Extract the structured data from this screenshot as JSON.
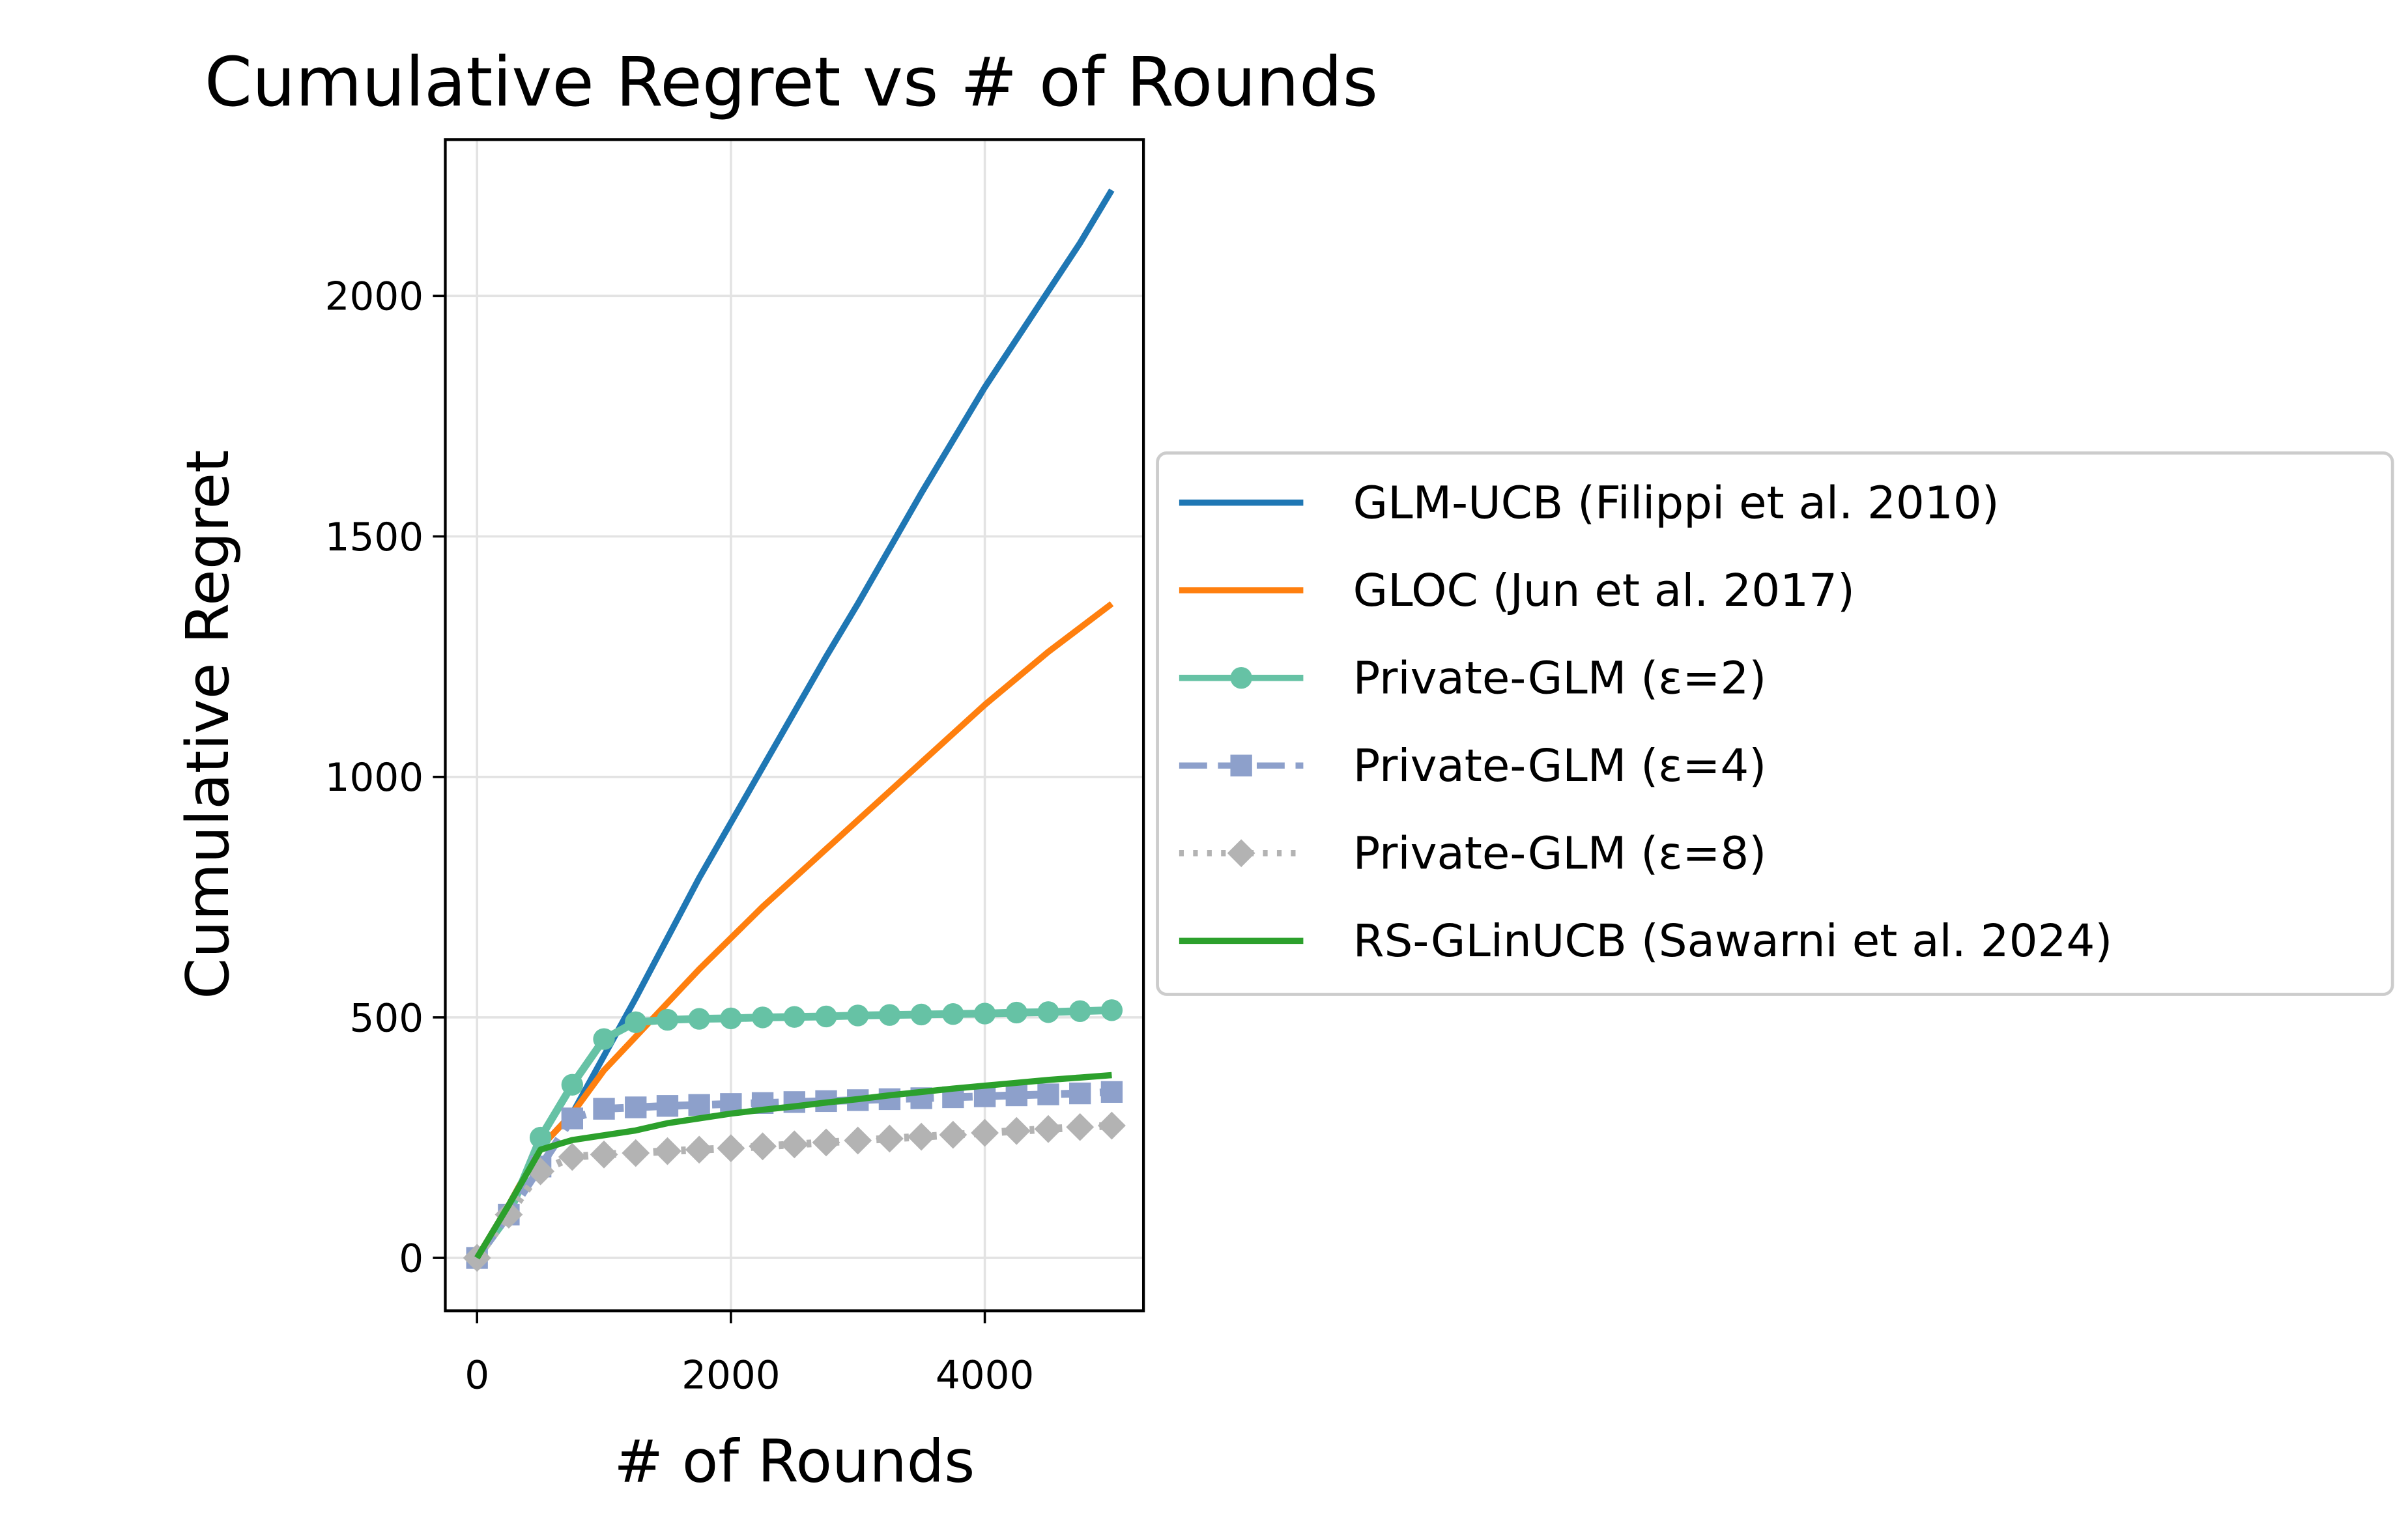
{
  "chart_data": {
    "type": "line",
    "title": "Cumulative Regret vs # of Rounds",
    "x_label": "# of Rounds",
    "y_label": "Cumulative Regret",
    "x": [
      0,
      250,
      500,
      750,
      1000,
      1250,
      1500,
      1750,
      2000,
      2250,
      2500,
      2750,
      3000,
      3250,
      3500,
      3750,
      4000,
      4250,
      4500,
      4750,
      5000
    ],
    "series": [
      {
        "name": "GLM-UCB (Filippi et al. 2010)",
        "color": "#1f77b4",
        "style": "solid",
        "marker": "none",
        "values": [
          0,
          110,
          230,
          300,
          420,
          540,
          665,
          790,
          905,
          1020,
          1135,
          1250,
          1360,
          1475,
          1590,
          1700,
          1810,
          1910,
          2010,
          2110,
          2220
        ]
      },
      {
        "name": "GLOC (Jun et al. 2017)",
        "color": "#ff7f0e",
        "style": "solid",
        "marker": "none",
        "values": [
          0,
          110,
          230,
          300,
          390,
          460,
          530,
          600,
          665,
          730,
          790,
          850,
          910,
          970,
          1030,
          1090,
          1150,
          1205,
          1260,
          1310,
          1360
        ]
      },
      {
        "name": "Private-GLM (ε=2)",
        "color": "#66c2a5",
        "style": "solid",
        "marker": "circle",
        "values": [
          0,
          90,
          250,
          360,
          455,
          490,
          495,
          497,
          498,
          500,
          501,
          502,
          504,
          505,
          506,
          507,
          508,
          510,
          511,
          513,
          515
        ]
      },
      {
        "name": "Private-GLM (ε=4)",
        "color": "#8da0cb",
        "style": "dashed",
        "marker": "square",
        "values": [
          0,
          90,
          190,
          290,
          310,
          313,
          316,
          318,
          320,
          322,
          324,
          326,
          328,
          330,
          332,
          334,
          336,
          338,
          340,
          342,
          345
        ]
      },
      {
        "name": "Private-GLM (ε=8)",
        "color": "#b3b3b3",
        "style": "dotted",
        "marker": "diamond",
        "values": [
          0,
          90,
          180,
          210,
          215,
          218,
          222,
          225,
          228,
          232,
          236,
          240,
          244,
          248,
          252,
          256,
          260,
          264,
          268,
          272,
          275
        ]
      },
      {
        "name": "RS-GLinUCB (Sawarni et al. 2024)",
        "color": "#2ca02c",
        "style": "solid",
        "marker": "none",
        "values": [
          0,
          110,
          225,
          245,
          255,
          265,
          280,
          290,
          300,
          308,
          315,
          323,
          330,
          338,
          345,
          352,
          358,
          364,
          370,
          375,
          380
        ]
      }
    ],
    "xlim": [
      -250,
      5250
    ],
    "xticks": [
      0,
      2000,
      4000
    ],
    "ylim": [
      -110,
      2325
    ],
    "yticks": [
      0,
      500,
      1000,
      1500,
      2000
    ],
    "grid": true,
    "legend": "outside right"
  }
}
